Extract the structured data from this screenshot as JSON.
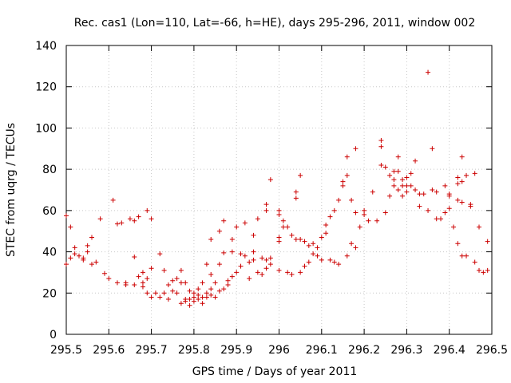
{
  "chart_data": {
    "type": "scatter",
    "title": "Rec. cas1 (Lon=110, Lat=-66, h=HE), days 295-296, 2011, window 002",
    "xlabel": "GPS time / Days of year 2011",
    "ylabel": "STEC from uqrg / TECUs",
    "xlim": [
      295.5,
      296.5
    ],
    "ylim": [
      0,
      140
    ],
    "xticks": [
      295.5,
      295.6,
      295.7,
      295.8,
      295.9,
      296,
      296.1,
      296.2,
      296.3,
      296.4,
      296.5
    ],
    "xtick_labels": [
      "295.5",
      "295.6",
      "295.7",
      "295.8",
      "295.9",
      "296",
      "296.1",
      "296.2",
      "296.3",
      "296.4",
      "296.5"
    ],
    "yticks": [
      0,
      20,
      40,
      60,
      80,
      100,
      120,
      140
    ],
    "ytick_labels": [
      "0",
      "20",
      "40",
      "60",
      "80",
      "100",
      "120",
      "140"
    ],
    "marker": "+",
    "color": "#cc0000",
    "series": [
      {
        "name": "STEC",
        "points": [
          [
            295.5,
            57.5
          ],
          [
            295.5,
            34
          ],
          [
            295.51,
            52
          ],
          [
            295.51,
            37
          ],
          [
            295.52,
            42
          ],
          [
            295.52,
            39
          ],
          [
            295.53,
            38
          ],
          [
            295.54,
            37
          ],
          [
            295.54,
            36
          ],
          [
            295.55,
            40
          ],
          [
            295.55,
            43
          ],
          [
            295.56,
            47
          ],
          [
            295.56,
            34
          ],
          [
            295.57,
            35
          ],
          [
            295.58,
            56
          ],
          [
            295.59,
            29.5
          ],
          [
            295.6,
            27
          ],
          [
            295.61,
            65
          ],
          [
            295.62,
            25
          ],
          [
            295.62,
            53.5
          ],
          [
            295.63,
            54
          ],
          [
            295.64,
            24
          ],
          [
            295.64,
            25
          ],
          [
            295.65,
            56
          ],
          [
            295.66,
            24
          ],
          [
            295.66,
            55
          ],
          [
            295.66,
            37.5
          ],
          [
            295.67,
            57
          ],
          [
            295.67,
            28
          ],
          [
            295.68,
            30
          ],
          [
            295.68,
            25
          ],
          [
            295.68,
            23
          ],
          [
            295.69,
            60
          ],
          [
            295.69,
            27
          ],
          [
            295.69,
            20
          ],
          [
            295.7,
            56
          ],
          [
            295.7,
            32
          ],
          [
            295.7,
            18
          ],
          [
            295.71,
            20
          ],
          [
            295.72,
            39
          ],
          [
            295.72,
            18
          ],
          [
            295.73,
            20
          ],
          [
            295.73,
            31
          ],
          [
            295.74,
            17
          ],
          [
            295.74,
            24
          ],
          [
            295.75,
            21
          ],
          [
            295.75,
            26
          ],
          [
            295.76,
            27
          ],
          [
            295.76,
            20
          ],
          [
            295.77,
            25
          ],
          [
            295.77,
            15
          ],
          [
            295.77,
            31
          ],
          [
            295.78,
            17
          ],
          [
            295.78,
            16
          ],
          [
            295.78,
            25
          ],
          [
            295.79,
            14
          ],
          [
            295.79,
            17
          ],
          [
            295.79,
            21
          ],
          [
            295.8,
            16
          ],
          [
            295.8,
            18
          ],
          [
            295.8,
            20
          ],
          [
            295.81,
            17
          ],
          [
            295.81,
            19
          ],
          [
            295.81,
            22
          ],
          [
            295.82,
            15
          ],
          [
            295.82,
            18
          ],
          [
            295.82,
            25
          ],
          [
            295.83,
            34
          ],
          [
            295.83,
            20
          ],
          [
            295.83,
            18
          ],
          [
            295.84,
            46
          ],
          [
            295.84,
            29
          ],
          [
            295.84,
            22
          ],
          [
            295.84,
            19
          ],
          [
            295.85,
            18
          ],
          [
            295.85,
            25
          ],
          [
            295.86,
            50
          ],
          [
            295.86,
            34
          ],
          [
            295.86,
            21
          ],
          [
            295.87,
            22
          ],
          [
            295.87,
            55
          ],
          [
            295.87,
            39.5
          ],
          [
            295.88,
            26
          ],
          [
            295.88,
            24
          ],
          [
            295.89,
            46
          ],
          [
            295.89,
            28
          ],
          [
            295.89,
            40
          ],
          [
            295.9,
            52
          ],
          [
            295.9,
            30
          ],
          [
            295.91,
            39
          ],
          [
            295.91,
            33
          ],
          [
            295.92,
            54
          ],
          [
            295.92,
            38
          ],
          [
            295.93,
            27
          ],
          [
            295.93,
            35
          ],
          [
            295.94,
            48
          ],
          [
            295.94,
            40
          ],
          [
            295.94,
            36
          ],
          [
            295.95,
            30
          ],
          [
            295.95,
            56
          ],
          [
            295.96,
            29
          ],
          [
            295.96,
            37
          ],
          [
            295.97,
            63
          ],
          [
            295.97,
            60
          ],
          [
            295.97,
            36
          ],
          [
            295.97,
            32
          ],
          [
            295.98,
            75
          ],
          [
            295.98,
            37
          ],
          [
            295.98,
            34
          ],
          [
            296.0,
            60
          ],
          [
            296.0,
            58
          ],
          [
            296.0,
            47
          ],
          [
            296.0,
            45
          ],
          [
            296.0,
            31
          ],
          [
            296.01,
            55
          ],
          [
            296.01,
            52
          ],
          [
            296.02,
            30
          ],
          [
            296.02,
            52
          ],
          [
            296.03,
            29
          ],
          [
            296.03,
            48
          ],
          [
            296.04,
            69
          ],
          [
            296.04,
            66
          ],
          [
            296.04,
            46
          ],
          [
            296.05,
            30
          ],
          [
            296.05,
            46
          ],
          [
            296.05,
            77
          ],
          [
            296.06,
            33
          ],
          [
            296.06,
            45
          ],
          [
            296.07,
            35
          ],
          [
            296.07,
            43
          ],
          [
            296.08,
            44
          ],
          [
            296.08,
            39
          ],
          [
            296.09,
            42
          ],
          [
            296.09,
            38
          ],
          [
            296.1,
            47
          ],
          [
            296.1,
            36
          ],
          [
            296.11,
            53
          ],
          [
            296.11,
            49
          ],
          [
            296.12,
            36
          ],
          [
            296.12,
            57
          ],
          [
            296.13,
            60
          ],
          [
            296.13,
            35
          ],
          [
            296.14,
            65
          ],
          [
            296.14,
            34
          ],
          [
            296.15,
            72
          ],
          [
            296.15,
            74
          ],
          [
            296.16,
            86
          ],
          [
            296.16,
            77
          ],
          [
            296.16,
            38
          ],
          [
            296.17,
            65
          ],
          [
            296.17,
            44
          ],
          [
            296.18,
            90
          ],
          [
            296.18,
            42
          ],
          [
            296.18,
            59
          ],
          [
            296.19,
            52
          ],
          [
            296.2,
            60
          ],
          [
            296.2,
            58
          ],
          [
            296.21,
            55
          ],
          [
            296.22,
            69
          ],
          [
            296.23,
            55
          ],
          [
            296.24,
            94
          ],
          [
            296.24,
            91
          ],
          [
            296.24,
            82
          ],
          [
            296.25,
            81
          ],
          [
            296.25,
            59
          ],
          [
            296.26,
            67
          ],
          [
            296.26,
            77
          ],
          [
            296.27,
            79
          ],
          [
            296.27,
            75
          ],
          [
            296.27,
            72
          ],
          [
            296.28,
            86
          ],
          [
            296.28,
            79
          ],
          [
            296.28,
            70
          ],
          [
            296.29,
            72
          ],
          [
            296.29,
            75
          ],
          [
            296.29,
            67
          ],
          [
            296.3,
            72
          ],
          [
            296.3,
            69
          ],
          [
            296.3,
            76
          ],
          [
            296.31,
            72
          ],
          [
            296.31,
            78
          ],
          [
            296.32,
            84
          ],
          [
            296.32,
            70
          ],
          [
            296.33,
            68
          ],
          [
            296.33,
            62
          ],
          [
            296.34,
            68
          ],
          [
            296.35,
            127
          ],
          [
            296.35,
            60
          ],
          [
            296.36,
            90
          ],
          [
            296.36,
            70
          ],
          [
            296.37,
            56
          ],
          [
            296.37,
            69
          ],
          [
            296.38,
            56
          ],
          [
            296.39,
            72
          ],
          [
            296.39,
            59
          ],
          [
            296.4,
            61
          ],
          [
            296.4,
            68
          ],
          [
            296.4,
            67
          ],
          [
            296.41,
            52
          ],
          [
            296.42,
            76
          ],
          [
            296.42,
            73
          ],
          [
            296.42,
            65
          ],
          [
            296.42,
            44
          ],
          [
            296.43,
            86
          ],
          [
            296.43,
            74
          ],
          [
            296.43,
            64
          ],
          [
            296.43,
            38
          ],
          [
            296.44,
            38
          ],
          [
            296.44,
            77
          ],
          [
            296.45,
            63
          ],
          [
            296.45,
            62
          ],
          [
            296.46,
            78
          ],
          [
            296.46,
            35
          ],
          [
            296.47,
            52
          ],
          [
            296.47,
            31
          ],
          [
            296.48,
            30
          ],
          [
            296.49,
            45
          ],
          [
            296.49,
            31
          ]
        ]
      }
    ]
  }
}
